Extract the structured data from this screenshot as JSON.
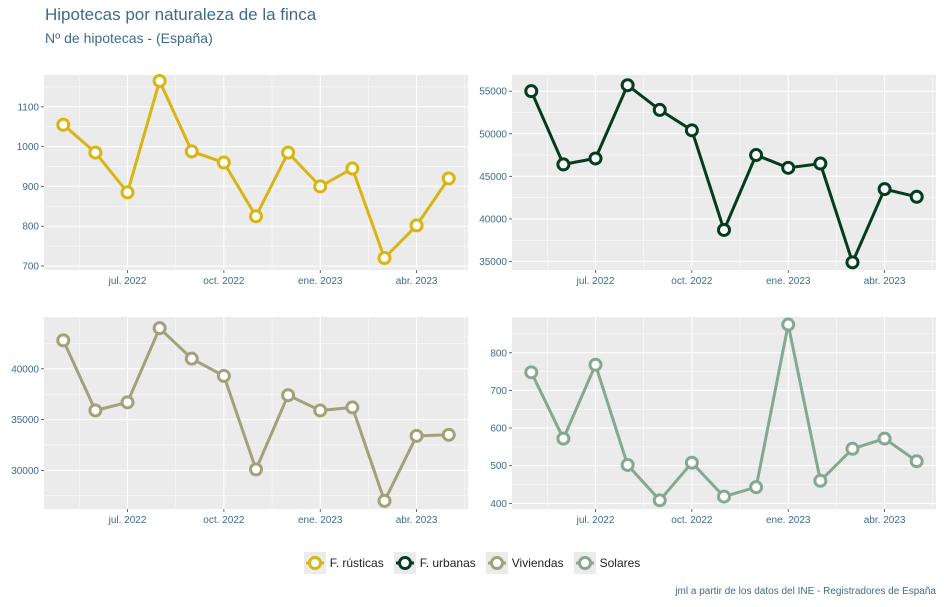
{
  "title": "Hipotecas por naturaleza de la finca",
  "subtitle": "Nº de hipotecas - (España)",
  "caption": "jml a partir de los datos del INE - Registradores de España",
  "x_tick_labels": [
    "jul. 2022",
    "oct. 2022",
    "ene. 2023",
    "abr. 2023"
  ],
  "x_tick_positions": [
    2,
    5,
    8,
    11
  ],
  "x_range": [
    -0.6,
    12.6
  ],
  "chart_data": [
    {
      "type": "line",
      "series_name": "F. rústicas",
      "color": "#d9b513",
      "x": [
        0,
        1,
        2,
        3,
        4,
        5,
        6,
        7,
        8,
        9,
        10,
        11,
        12
      ],
      "values": [
        1055,
        985,
        885,
        1165,
        988,
        960,
        825,
        985,
        900,
        945,
        720,
        802,
        920
      ],
      "ylim": [
        690,
        1180
      ],
      "yticks": [
        700,
        800,
        900,
        1000,
        1100
      ]
    },
    {
      "type": "line",
      "series_name": "F. urbanas",
      "color": "#043d1e",
      "x": [
        0,
        1,
        2,
        3,
        4,
        5,
        6,
        7,
        8,
        9,
        10,
        11,
        12
      ],
      "values": [
        55000,
        46400,
        47100,
        55700,
        52800,
        50400,
        38700,
        47500,
        46000,
        46500,
        34900,
        43500,
        42600
      ],
      "ylim": [
        34000,
        56900
      ],
      "yticks": [
        35000,
        40000,
        45000,
        50000,
        55000
      ]
    },
    {
      "type": "line",
      "series_name": "Viviendas",
      "color": "#a2a27a",
      "x": [
        0,
        1,
        2,
        3,
        4,
        5,
        6,
        7,
        8,
        9,
        10,
        11,
        12
      ],
      "values": [
        42800,
        35900,
        36700,
        44000,
        41000,
        39300,
        30100,
        37400,
        35900,
        36200,
        27000,
        33400,
        33500
      ],
      "ylim": [
        26200,
        45100
      ],
      "yticks": [
        30000,
        35000,
        40000
      ]
    },
    {
      "type": "line",
      "series_name": "Solares",
      "color": "#85a890",
      "x": [
        0,
        1,
        2,
        3,
        4,
        5,
        6,
        7,
        8,
        9,
        10,
        11,
        12
      ],
      "values": [
        748,
        572,
        768,
        502,
        408,
        508,
        418,
        443,
        875,
        460,
        545,
        572,
        512
      ],
      "ylim": [
        385,
        895
      ],
      "yticks": [
        400,
        500,
        600,
        700,
        800
      ]
    }
  ],
  "legend": [
    {
      "label": "F. rústicas",
      "color": "#d9b513"
    },
    {
      "label": "F. urbanas",
      "color": "#043d1e"
    },
    {
      "label": "Viviendas",
      "color": "#a2a27a"
    },
    {
      "label": "Solares",
      "color": "#85a890"
    }
  ]
}
